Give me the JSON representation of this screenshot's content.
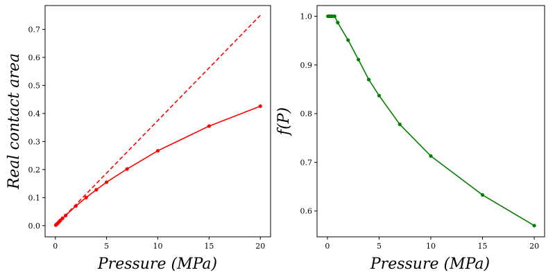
{
  "chart_data": [
    {
      "type": "line",
      "title": "",
      "xlabel": "Pressure (MPa)",
      "ylabel": "Real contact area",
      "xlim": [
        -1,
        21
      ],
      "ylim": [
        -0.04,
        0.785
      ],
      "xticks": [
        0,
        5,
        10,
        15,
        20
      ],
      "yticks": [
        0.0,
        0.1,
        0.2,
        0.3,
        0.4,
        0.5,
        0.6,
        0.7
      ],
      "grid": false,
      "series": [
        {
          "name": "real contact area",
          "color": "#ff0000",
          "style": "solid",
          "marker": "dot",
          "x": [
            0.05,
            0.1,
            0.2,
            0.3,
            0.4,
            0.5,
            0.7,
            1,
            2,
            3,
            4,
            5,
            7,
            10,
            15,
            20
          ],
          "y": [
            0.002,
            0.004,
            0.007,
            0.011,
            0.015,
            0.019,
            0.026,
            0.036,
            0.07,
            0.1,
            0.128,
            0.155,
            0.202,
            0.267,
            0.355,
            0.426
          ]
        },
        {
          "name": "linear reference",
          "color": "#ff0000",
          "style": "dashed",
          "marker": "none",
          "x": [
            0,
            20
          ],
          "y": [
            0,
            0.75
          ]
        }
      ]
    },
    {
      "type": "line",
      "title": "",
      "xlabel": "Pressure (MPa)",
      "ylabel": "f(P)",
      "xlim": [
        -1,
        21
      ],
      "ylim": [
        0.547,
        1.022
      ],
      "xticks": [
        0,
        5,
        10,
        15,
        20
      ],
      "yticks": [
        0.6,
        0.7,
        0.8,
        0.9,
        1.0
      ],
      "grid": false,
      "series": [
        {
          "name": "f(P)",
          "color": "#008000",
          "style": "solid",
          "marker": "dot",
          "x": [
            0.05,
            0.1,
            0.2,
            0.3,
            0.4,
            0.5,
            0.7,
            1,
            2,
            3,
            4,
            5,
            7,
            10,
            15,
            20
          ],
          "y": [
            1.0,
            1.0,
            1.0,
            1.0,
            1.0,
            1.0,
            1.0,
            0.987,
            0.951,
            0.911,
            0.87,
            0.837,
            0.778,
            0.713,
            0.633,
            0.57
          ]
        }
      ]
    }
  ]
}
